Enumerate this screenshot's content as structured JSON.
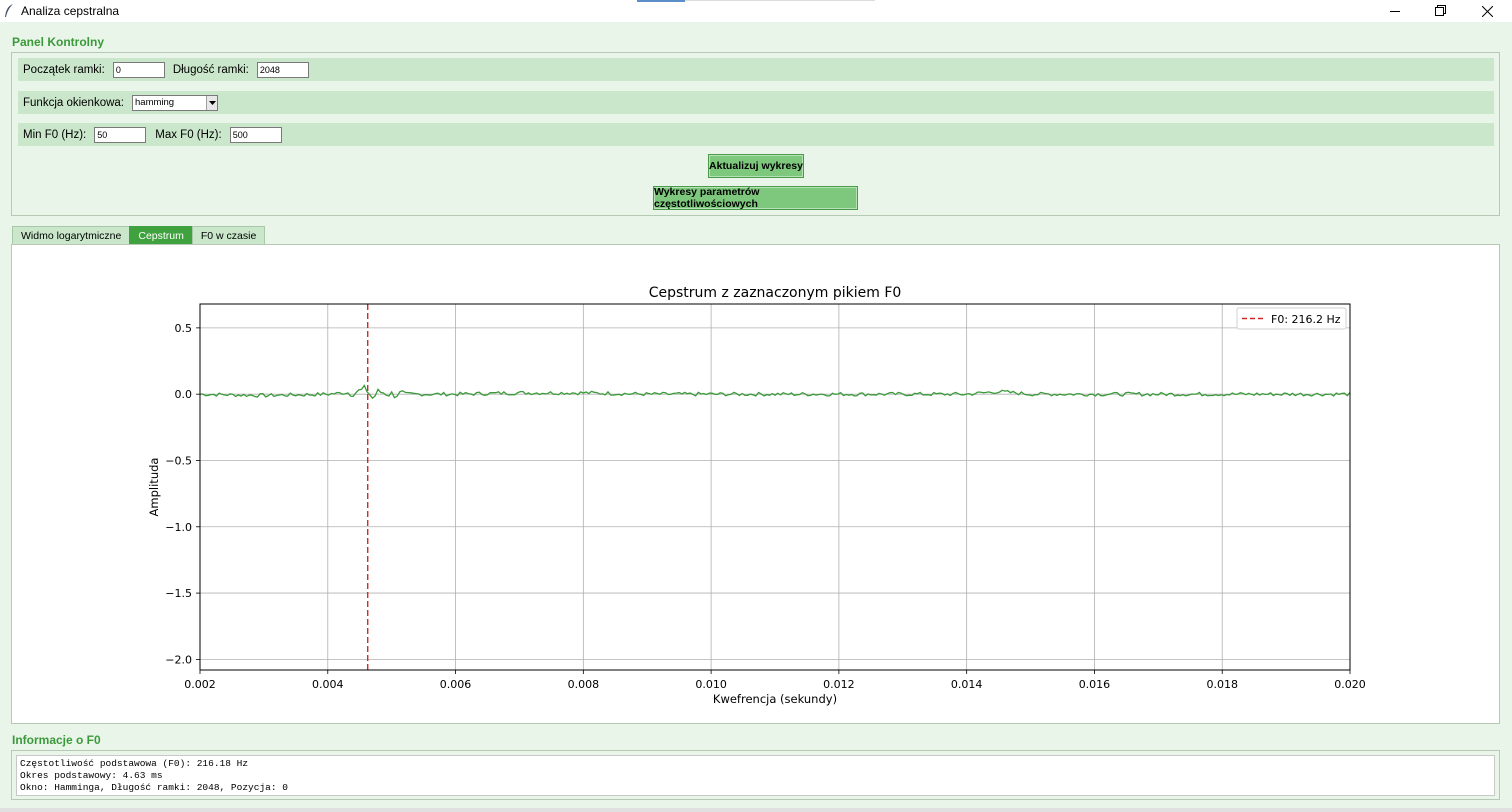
{
  "window": {
    "title": "Analiza cepstralna",
    "icons": {
      "app": "feather-icon",
      "minimize": "minimize-icon",
      "restore": "restore-icon",
      "close": "close-icon"
    }
  },
  "control_panel": {
    "label": "Panel Kontrolny",
    "frame_start_label": "Początek ramki:",
    "frame_start_value": "0",
    "frame_length_label": "Długość ramki:",
    "frame_length_value": "2048",
    "window_fn_label": "Funkcja okienkowa:",
    "window_fn_value": "hamming",
    "min_f0_label": "Min F0 (Hz):",
    "min_f0_value": "50",
    "max_f0_label": "Max F0 (Hz):",
    "max_f0_value": "500",
    "update_button": "Aktualizuj wykresy",
    "freq_params_button": "Wykresy parametrów częstotliwościowych"
  },
  "tabs": [
    {
      "label": "Widmo logarytmiczne",
      "active": false
    },
    {
      "label": "Cepstrum",
      "active": true
    },
    {
      "label": "F0 w czasie",
      "active": false
    }
  ],
  "chart_data": {
    "type": "line",
    "title": "Cepstrum z zaznaczonym pikiem F0",
    "xlabel": "Kwefrencja (sekundy)",
    "ylabel": "Amplituda",
    "xlim": [
      0.002,
      0.02
    ],
    "ylim": [
      -2.08,
      0.68
    ],
    "xticks": [
      "0.002",
      "0.004",
      "0.006",
      "0.008",
      "0.010",
      "0.012",
      "0.014",
      "0.016",
      "0.018",
      "0.020"
    ],
    "yticks": [
      "0.5",
      "0.0",
      "−0.5",
      "−1.0",
      "−1.5",
      "−2.0"
    ],
    "grid": true,
    "line_color": "#3a9a3a",
    "marker_color": "#d62728",
    "series": [
      {
        "x": [
          0.002,
          0.003,
          0.004,
          0.0045,
          0.0046,
          0.0047,
          0.0048,
          0.005,
          0.006,
          0.007,
          0.008,
          0.009,
          0.01,
          0.011,
          0.012,
          0.013,
          0.014,
          0.0145,
          0.015,
          0.016,
          0.017,
          0.018,
          0.019,
          0.02
        ],
        "values": [
          0.0,
          -0.01,
          0.0,
          0.02,
          0.04,
          -0.03,
          0.02,
          0.0,
          0.0,
          0.01,
          0.01,
          0.0,
          0.0,
          0.0,
          0.0,
          0.0,
          0.0,
          0.02,
          0.0,
          0.0,
          0.0,
          0.0,
          0.0,
          0.0
        ]
      }
    ],
    "f0_marker": {
      "x": 0.004625,
      "legend": "F0: 216.2 Hz"
    },
    "legend_position": "top-right"
  },
  "f0_info": {
    "label": "Informacje o F0",
    "lines": [
      "Częstotliwość podstawowa (F0): 216.18 Hz",
      "Okres podstawowy: 4.63 ms",
      "Okno: Hamminga, Długość ramki: 2048, Pozycja: 0"
    ]
  }
}
